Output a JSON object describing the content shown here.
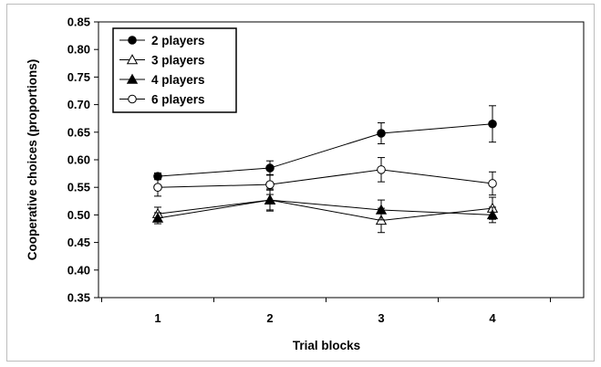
{
  "chart_data": {
    "type": "line",
    "xlabel": "Trial blocks",
    "ylabel": "Cooperative choices (proportions)",
    "categories": [
      "1",
      "2",
      "3",
      "4"
    ],
    "ylim": [
      0.35,
      0.85
    ],
    "yticks": [
      "0.35",
      "0.40",
      "0.45",
      "0.50",
      "0.55",
      "0.60",
      "0.65",
      "0.70",
      "0.75",
      "0.80",
      "0.85"
    ],
    "grid": false,
    "legend_position": "top-left",
    "series": [
      {
        "name": "2 players",
        "marker": "filled-circle",
        "values": [
          0.57,
          0.585,
          0.648,
          0.665
        ],
        "error": [
          0.006,
          0.013,
          0.019,
          0.033
        ]
      },
      {
        "name": "3 players",
        "marker": "open-triangle",
        "values": [
          0.502,
          0.527,
          0.49,
          0.512
        ],
        "error": [
          0.012,
          0.02,
          0.022,
          0.02
        ]
      },
      {
        "name": "4 players",
        "marker": "filled-triangle",
        "values": [
          0.494,
          0.527,
          0.509,
          0.5
        ],
        "error": [
          0.01,
          0.018,
          0.018,
          0.014
        ]
      },
      {
        "name": "6 players",
        "marker": "open-circle",
        "values": [
          0.55,
          0.555,
          0.582,
          0.557
        ],
        "error": [
          0.016,
          0.018,
          0.022,
          0.021
        ]
      }
    ]
  }
}
